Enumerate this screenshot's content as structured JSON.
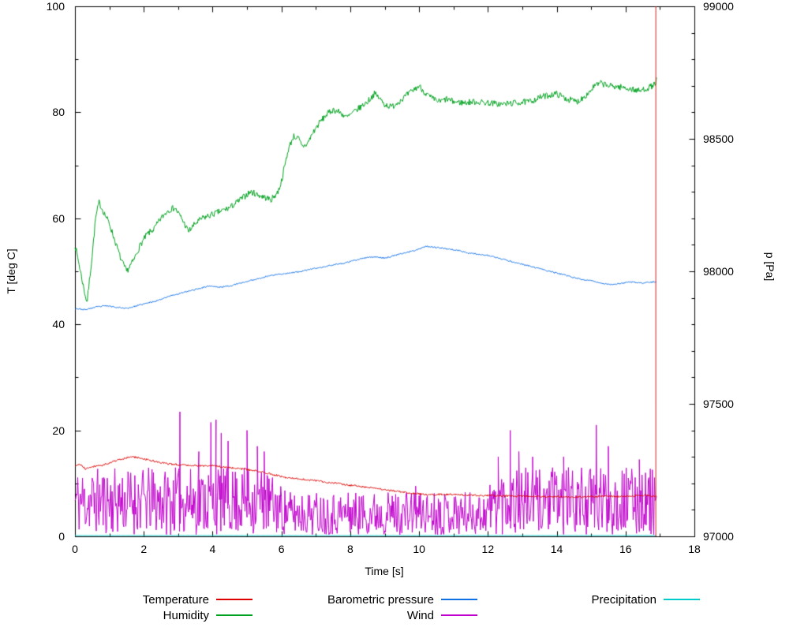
{
  "figure": {
    "background": "#ffffff",
    "axes": {
      "x": {
        "label": "Time [s]",
        "min": 0,
        "max": 18,
        "major_ticks": [
          0,
          2,
          4,
          6,
          8,
          10,
          12,
          14,
          16,
          18
        ],
        "minor_step": 1
      },
      "y_left": {
        "label": "T [deg C]",
        "min": 0,
        "max": 100,
        "major_ticks": [
          0,
          20,
          40,
          60,
          80,
          100
        ],
        "minor_step": 10
      },
      "y_right": {
        "label": "p [Pa]",
        "min": 97000,
        "max": 99000,
        "major_ticks": [
          97000,
          97500,
          98000,
          98500,
          99000
        ],
        "minor_step": 100
      }
    }
  },
  "chart_data": {
    "type": "line",
    "title": "",
    "xlabel": "Time [s]",
    "ylabel": "T [deg C]",
    "y2label": "p [Pa]",
    "xlim": [
      0,
      18
    ],
    "ylim": [
      0,
      100
    ],
    "y2lim": [
      97000,
      99000
    ],
    "grid": false,
    "legend_position": "below",
    "series": [
      {
        "name": "Temperature",
        "color": "#dd0000",
        "axis": "left",
        "noise": 0.18,
        "seed": 41,
        "points": [
          [
            0,
            13.2
          ],
          [
            0.15,
            13.6
          ],
          [
            0.3,
            12.7
          ],
          [
            0.45,
            13.1
          ],
          [
            0.6,
            13.3
          ],
          [
            0.8,
            13.4
          ],
          [
            1.0,
            13.9
          ],
          [
            1.2,
            14.3
          ],
          [
            1.4,
            14.6
          ],
          [
            1.6,
            15.0
          ],
          [
            1.8,
            14.9
          ],
          [
            2.0,
            14.6
          ],
          [
            2.2,
            14.3
          ],
          [
            2.5,
            13.9
          ],
          [
            2.8,
            13.6
          ],
          [
            3.1,
            13.5
          ],
          [
            3.4,
            13.4
          ],
          [
            3.7,
            13.3
          ],
          [
            4.0,
            13.3
          ],
          [
            4.3,
            13.1
          ],
          [
            4.6,
            12.9
          ],
          [
            4.9,
            12.7
          ],
          [
            5.2,
            12.4
          ],
          [
            5.5,
            12.1
          ],
          [
            5.8,
            11.6
          ],
          [
            6.1,
            11.1
          ],
          [
            6.4,
            10.9
          ],
          [
            6.7,
            10.7
          ],
          [
            7.0,
            10.5
          ],
          [
            7.3,
            10.2
          ],
          [
            7.6,
            10.0
          ],
          [
            7.9,
            9.7
          ],
          [
            8.2,
            9.5
          ],
          [
            8.5,
            9.2
          ],
          [
            8.8,
            9.0
          ],
          [
            9.1,
            8.7
          ],
          [
            9.4,
            8.5
          ],
          [
            9.7,
            8.2
          ],
          [
            10.0,
            8.0
          ],
          [
            10.3,
            7.8
          ],
          [
            10.6,
            7.9
          ],
          [
            11.0,
            7.9
          ],
          [
            11.4,
            7.8
          ],
          [
            11.8,
            7.7
          ],
          [
            12.2,
            7.7
          ],
          [
            12.6,
            7.6
          ],
          [
            13.0,
            7.6
          ],
          [
            13.4,
            7.5
          ],
          [
            13.8,
            7.5
          ],
          [
            14.2,
            7.4
          ],
          [
            14.6,
            7.4
          ],
          [
            15.0,
            7.5
          ],
          [
            15.4,
            7.6
          ],
          [
            15.8,
            7.5
          ],
          [
            16.2,
            7.6
          ],
          [
            16.6,
            7.8
          ],
          [
            16.9,
            7.5
          ]
        ]
      },
      {
        "name": "Humidity",
        "color": "#00a120",
        "axis": "left",
        "noise": 0.6,
        "seed": 7,
        "points": [
          [
            0,
            55
          ],
          [
            0.1,
            52
          ],
          [
            0.25,
            47
          ],
          [
            0.35,
            44
          ],
          [
            0.5,
            53
          ],
          [
            0.6,
            60
          ],
          [
            0.7,
            63
          ],
          [
            0.85,
            61
          ],
          [
            1.0,
            59
          ],
          [
            1.2,
            55
          ],
          [
            1.35,
            52
          ],
          [
            1.5,
            50
          ],
          [
            1.7,
            52
          ],
          [
            1.9,
            55
          ],
          [
            2.1,
            57
          ],
          [
            2.3,
            58
          ],
          [
            2.5,
            60
          ],
          [
            2.7,
            61.5
          ],
          [
            2.9,
            62
          ],
          [
            3.1,
            60
          ],
          [
            3.3,
            57.5
          ],
          [
            3.5,
            59
          ],
          [
            3.7,
            60
          ],
          [
            3.9,
            60.5
          ],
          [
            4.1,
            61
          ],
          [
            4.3,
            61.5
          ],
          [
            4.5,
            62
          ],
          [
            4.7,
            63
          ],
          [
            4.9,
            64
          ],
          [
            5.1,
            65
          ],
          [
            5.3,
            64.5
          ],
          [
            5.5,
            64
          ],
          [
            5.7,
            63.5
          ],
          [
            5.9,
            65
          ],
          [
            6.0,
            67
          ],
          [
            6.1,
            70
          ],
          [
            6.2,
            73
          ],
          [
            6.35,
            75.5
          ],
          [
            6.5,
            75
          ],
          [
            6.6,
            73.5
          ],
          [
            6.75,
            74
          ],
          [
            6.9,
            76
          ],
          [
            7.1,
            78
          ],
          [
            7.3,
            79.5
          ],
          [
            7.5,
            80.5
          ],
          [
            7.7,
            80
          ],
          [
            7.9,
            79
          ],
          [
            8.1,
            80
          ],
          [
            8.3,
            81
          ],
          [
            8.5,
            82
          ],
          [
            8.7,
            83.5
          ],
          [
            8.8,
            83
          ],
          [
            9.0,
            81.5
          ],
          [
            9.2,
            81
          ],
          [
            9.4,
            82
          ],
          [
            9.6,
            83
          ],
          [
            9.8,
            84
          ],
          [
            10.0,
            85
          ],
          [
            10.2,
            83.5
          ],
          [
            10.4,
            82.5
          ],
          [
            10.6,
            82
          ],
          [
            10.8,
            82.5
          ],
          [
            11.0,
            82
          ],
          [
            11.3,
            81.8
          ],
          [
            11.6,
            82
          ],
          [
            12.0,
            81.8
          ],
          [
            12.4,
            81.5
          ],
          [
            12.8,
            81.8
          ],
          [
            13.2,
            82
          ],
          [
            13.6,
            83
          ],
          [
            14.0,
            83.5
          ],
          [
            14.3,
            82.5
          ],
          [
            14.6,
            82
          ],
          [
            14.9,
            83.5
          ],
          [
            15.1,
            85
          ],
          [
            15.3,
            85.5
          ],
          [
            15.5,
            85
          ],
          [
            15.8,
            84.8
          ],
          [
            16.1,
            84.5
          ],
          [
            16.4,
            84
          ],
          [
            16.6,
            84.5
          ],
          [
            16.8,
            85
          ],
          [
            16.9,
            86
          ]
        ]
      },
      {
        "name": "Barometric pressure",
        "color": "#1070e8",
        "axis": "right",
        "noise": 2.5,
        "seed": 23,
        "points": [
          [
            0,
            97860
          ],
          [
            0.3,
            97855
          ],
          [
            0.6,
            97865
          ],
          [
            0.9,
            97870
          ],
          [
            1.2,
            97865
          ],
          [
            1.5,
            97860
          ],
          [
            1.8,
            97870
          ],
          [
            2.1,
            97880
          ],
          [
            2.4,
            97890
          ],
          [
            2.7,
            97905
          ],
          [
            3.0,
            97915
          ],
          [
            3.3,
            97925
          ],
          [
            3.6,
            97935
          ],
          [
            3.9,
            97945
          ],
          [
            4.2,
            97940
          ],
          [
            4.5,
            97945
          ],
          [
            4.8,
            97955
          ],
          [
            5.1,
            97965
          ],
          [
            5.4,
            97975
          ],
          [
            5.7,
            97985
          ],
          [
            6.0,
            97990
          ],
          [
            6.3,
            97995
          ],
          [
            6.6,
            98000
          ],
          [
            6.9,
            98010
          ],
          [
            7.2,
            98015
          ],
          [
            7.5,
            98025
          ],
          [
            7.8,
            98030
          ],
          [
            8.1,
            98040
          ],
          [
            8.4,
            98050
          ],
          [
            8.7,
            98055
          ],
          [
            9.0,
            98050
          ],
          [
            9.3,
            98060
          ],
          [
            9.6,
            98070
          ],
          [
            9.9,
            98080
          ],
          [
            10.2,
            98095
          ],
          [
            10.5,
            98090
          ],
          [
            10.8,
            98085
          ],
          [
            11.1,
            98080
          ],
          [
            11.4,
            98070
          ],
          [
            11.7,
            98065
          ],
          [
            12.0,
            98060
          ],
          [
            12.3,
            98050
          ],
          [
            12.6,
            98040
          ],
          [
            12.9,
            98030
          ],
          [
            13.2,
            98020
          ],
          [
            13.5,
            98010
          ],
          [
            13.8,
            98000
          ],
          [
            14.1,
            97990
          ],
          [
            14.4,
            97980
          ],
          [
            14.7,
            97970
          ],
          [
            15.0,
            97965
          ],
          [
            15.3,
            97955
          ],
          [
            15.6,
            97950
          ],
          [
            15.9,
            97955
          ],
          [
            16.2,
            97960
          ],
          [
            16.5,
            97955
          ],
          [
            16.8,
            97960
          ],
          [
            16.9,
            97960
          ]
        ]
      },
      {
        "name": "Wind",
        "color": "#c000cc",
        "axis": "left",
        "generator": {
          "kind": "noise-spikes",
          "seed": 11,
          "step": 0.02,
          "t_start": 0,
          "t_end": 16.9,
          "min": 0.3,
          "envelope": [
            [
              0,
              13
            ],
            [
              5.5,
              13
            ],
            [
              6.2,
              8.5
            ],
            [
              11.9,
              8.5
            ],
            [
              12.3,
              13
            ],
            [
              16.9,
              13
            ]
          ],
          "spikes": [
            [
              3.05,
              23.5
            ],
            [
              3.6,
              16
            ],
            [
              3.95,
              21.5
            ],
            [
              4.1,
              22
            ],
            [
              4.25,
              19.5
            ],
            [
              4.45,
              18
            ],
            [
              5.0,
              20
            ],
            [
              5.3,
              17
            ],
            [
              5.5,
              16
            ],
            [
              9.9,
              9.5
            ],
            [
              12.3,
              15
            ],
            [
              12.65,
              20
            ],
            [
              12.9,
              16
            ],
            [
              13.3,
              15
            ],
            [
              14.2,
              15
            ],
            [
              15.15,
              21
            ],
            [
              15.5,
              17
            ],
            [
              16.4,
              14.5
            ]
          ]
        }
      },
      {
        "name": "Precipitation",
        "color": "#00cccc",
        "axis": "left",
        "noise": 0,
        "seed": 3,
        "points": [
          [
            0,
            0.15
          ],
          [
            16.9,
            0.15
          ]
        ]
      }
    ],
    "annotations": [
      {
        "type": "vline",
        "x": 16.88,
        "y_from": 0,
        "y_to": 100,
        "color": "#cc2222"
      }
    ]
  },
  "legend": {
    "items": [
      {
        "label": "Temperature",
        "color": "#dd0000",
        "row": 0,
        "col": 0
      },
      {
        "label": "Humidity",
        "color": "#00a120",
        "row": 1,
        "col": 0
      },
      {
        "label": "Barometric pressure",
        "color": "#1070e8",
        "row": 0,
        "col": 1
      },
      {
        "label": "Wind",
        "color": "#c000cc",
        "row": 1,
        "col": 1
      },
      {
        "label": "Precipitation",
        "color": "#00cccc",
        "row": 0,
        "col": 2
      }
    ]
  }
}
